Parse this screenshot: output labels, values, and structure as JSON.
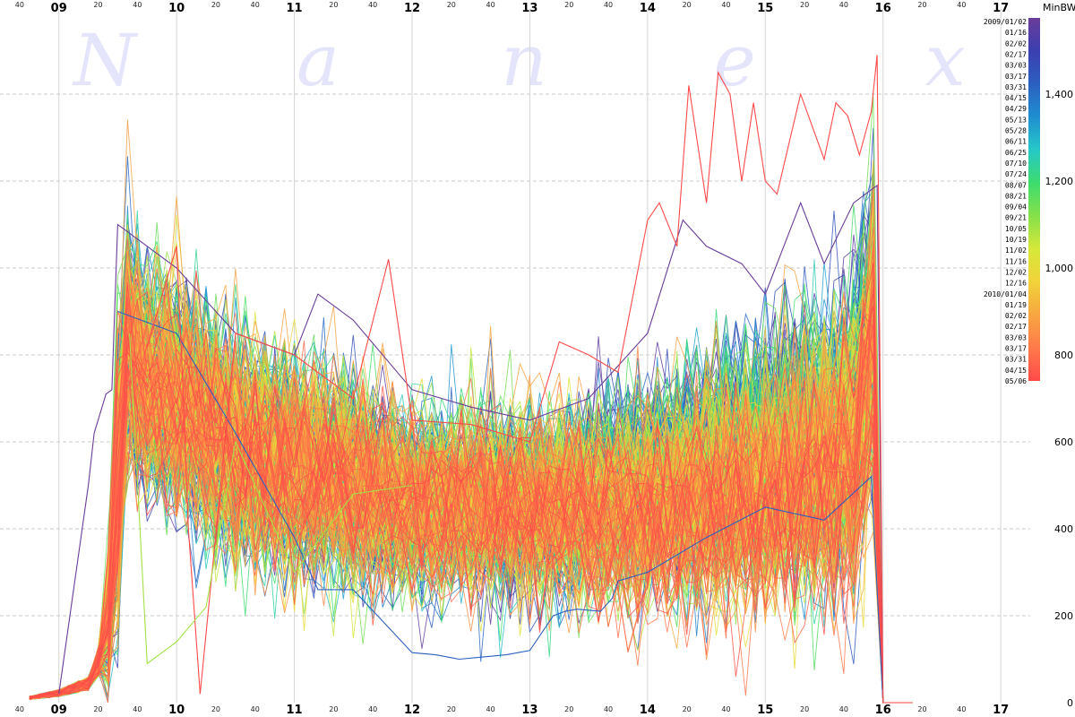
{
  "chart_data": {
    "type": "line",
    "watermark": [
      "N",
      "a",
      "n",
      "e",
      "x"
    ],
    "y_unit_label": "MinBW",
    "x_hour_ticks": [
      "09",
      "10",
      "11",
      "12",
      "13",
      "14",
      "15",
      "16",
      "17"
    ],
    "x_minute_ticks": [
      "20",
      "40"
    ],
    "x_start_label": "40",
    "x_range_hours": [
      8.5,
      17.25
    ],
    "ylim": [
      0,
      1600
    ],
    "y_ticks": [
      0,
      200,
      400,
      600,
      800,
      1000,
      1200,
      1400
    ],
    "y_tick_labels": [
      "0",
      "200",
      "400",
      "600",
      "800",
      "1,000",
      "1,200",
      "1,400"
    ],
    "grid": true,
    "legend": {
      "placement": "top-right",
      "kind": "color-scale",
      "labels": [
        "2009/01/02",
        "01/16",
        "02/02",
        "02/17",
        "03/03",
        "03/17",
        "03/31",
        "04/15",
        "04/29",
        "05/13",
        "05/28",
        "06/11",
        "06/25",
        "07/10",
        "07/24",
        "08/07",
        "08/21",
        "09/04",
        "09/21",
        "10/05",
        "10/19",
        "11/02",
        "11/16",
        "12/02",
        "12/16",
        "2010/01/04",
        "01/19",
        "02/02",
        "02/17",
        "03/03",
        "03/17",
        "03/31",
        "04/15",
        "05/06"
      ],
      "colors": [
        "#6a3d9a",
        "#3b3fb0",
        "#2b5fc0",
        "#1f8fd0",
        "#26c8c8",
        "#3ddc6e",
        "#86e04a",
        "#d6e83a",
        "#f2d33a",
        "#f7a640",
        "#ff7a4a",
        "#ff4a4a"
      ]
    },
    "series_count": 340,
    "profile": {
      "note_x": "times in hours (ET), y in MinBW units",
      "x": [
        8.75,
        9.0,
        9.25,
        9.4,
        9.5,
        9.55,
        9.6,
        9.75,
        10.0,
        10.25,
        10.5,
        11.0,
        11.5,
        12.0,
        12.5,
        13.0,
        13.5,
        14.0,
        14.5,
        15.0,
        15.5,
        15.75,
        15.9,
        15.97,
        16.0,
        16.25
      ],
      "median": [
        10,
        20,
        40,
        120,
        500,
        850,
        800,
        730,
        700,
        640,
        590,
        540,
        500,
        470,
        455,
        450,
        460,
        480,
        510,
        530,
        570,
        620,
        820,
        980,
        20,
        0
      ],
      "low": [
        0,
        5,
        15,
        60,
        250,
        600,
        580,
        560,
        540,
        480,
        440,
        400,
        380,
        360,
        350,
        340,
        350,
        370,
        390,
        410,
        440,
        480,
        600,
        700,
        0,
        0
      ],
      "high": [
        25,
        40,
        90,
        250,
        800,
        1100,
        1050,
        1000,
        960,
        900,
        860,
        800,
        760,
        700,
        680,
        680,
        700,
        760,
        820,
        880,
        960,
        1050,
        1200,
        1300,
        60,
        0
      ]
    },
    "highlighted_series": [
      {
        "name": "2009/01/02",
        "x": [
          9.0,
          9.25,
          9.3,
          9.4,
          9.45,
          9.5,
          10.0,
          10.5,
          11.0,
          11.2,
          11.5,
          12.0,
          12.5,
          13.0,
          13.5,
          14.0,
          14.3,
          14.5,
          14.8,
          15.0,
          15.3,
          15.5,
          15.75,
          15.95,
          16.0
        ],
        "y": [
          20,
          500,
          620,
          710,
          720,
          1100,
          1000,
          850,
          800,
          940,
          880,
          720,
          680,
          650,
          700,
          850,
          1110,
          1050,
          1010,
          940,
          1150,
          1010,
          1150,
          1190,
          0
        ]
      },
      {
        "name": "03/31",
        "x": [
          9.5,
          10.0,
          10.5,
          11.0,
          11.2,
          11.5,
          12.0,
          12.2,
          12.4,
          12.6,
          12.8,
          13.0,
          13.2,
          13.3,
          13.4,
          13.6,
          13.7,
          13.75,
          14.0,
          14.5,
          15.0,
          15.5,
          15.9,
          16.0
        ],
        "y": [
          900,
          850,
          620,
          380,
          260,
          260,
          115,
          110,
          100,
          105,
          110,
          120,
          200,
          210,
          215,
          210,
          240,
          280,
          300,
          380,
          450,
          420,
          520,
          0
        ]
      },
      {
        "name": "05/06",
        "x": [
          9.75,
          10.0,
          10.05,
          10.1,
          10.2,
          10.5,
          11.0,
          11.5,
          11.8,
          12.0,
          12.5,
          13.0,
          13.25,
          13.5,
          13.75,
          14.0,
          14.1,
          14.25,
          14.35,
          14.5,
          14.6,
          14.7,
          14.8,
          14.9,
          15.0,
          15.1,
          15.3,
          15.5,
          15.6,
          15.7,
          15.8,
          15.9,
          15.95,
          16.0
        ],
        "y": [
          820,
          1050,
          750,
          400,
          20,
          850,
          800,
          700,
          1020,
          650,
          640,
          600,
          830,
          800,
          760,
          1110,
          1150,
          1050,
          1420,
          1150,
          1450,
          1400,
          1200,
          1380,
          1200,
          1170,
          1400,
          1250,
          1380,
          1350,
          1260,
          1360,
          1490,
          0
        ]
      },
      {
        "name": "10/05",
        "x": [
          9.6,
          9.75,
          10.0,
          10.25,
          10.5,
          11.0,
          11.5,
          12.0
        ],
        "y": [
          850,
          90,
          140,
          220,
          600,
          300,
          480,
          500
        ]
      }
    ]
  }
}
